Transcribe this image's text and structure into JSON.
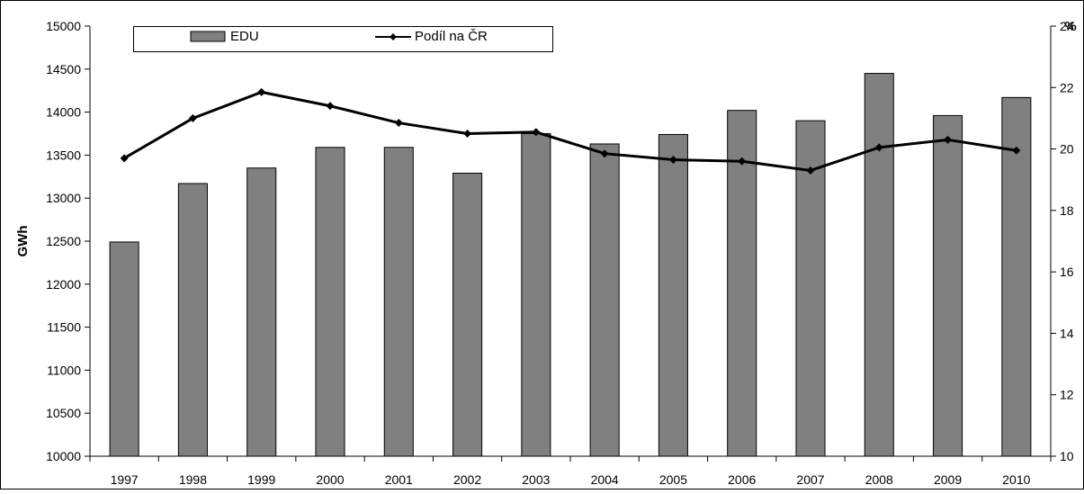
{
  "chart_data": {
    "type": "bar",
    "categories": [
      "1997",
      "1998",
      "1999",
      "2000",
      "2001",
      "2002",
      "2003",
      "2004",
      "2005",
      "2006",
      "2007",
      "2008",
      "2009",
      "2010"
    ],
    "series": [
      {
        "name": "EDU",
        "type": "bar",
        "axis": "left",
        "color": "#808080",
        "values": [
          12490,
          13170,
          13350,
          13590,
          13590,
          13290,
          13750,
          13630,
          13740,
          14020,
          13900,
          14450,
          13960,
          14170
        ]
      },
      {
        "name": "Podíl na ČR",
        "type": "line",
        "axis": "right",
        "color": "#000000",
        "marker": "diamond",
        "values": [
          19.7,
          21.0,
          21.85,
          21.4,
          20.85,
          20.5,
          20.55,
          19.85,
          19.65,
          19.6,
          19.3,
          20.05,
          20.3,
          19.95
        ]
      }
    ],
    "ylabel": "GWh",
    "y2label": "%",
    "ylim": [
      10000,
      15000
    ],
    "y2lim": [
      10,
      24
    ],
    "yticks": [
      "10000",
      "10500",
      "11000",
      "11500",
      "12000",
      "12500",
      "13000",
      "13500",
      "14000",
      "14500",
      "15000"
    ],
    "y2ticks": [
      "10",
      "12",
      "14",
      "16",
      "18",
      "20",
      "22",
      "24"
    ],
    "grid": false,
    "legend": "top-left"
  }
}
